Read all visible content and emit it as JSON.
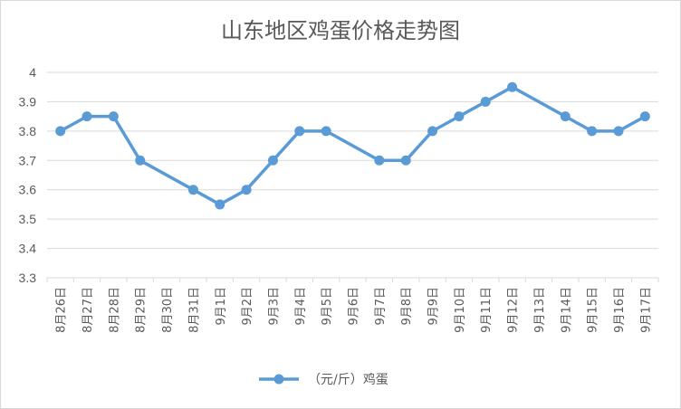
{
  "chart_data": {
    "type": "line",
    "title": "山东地区鸡蛋价格走势图",
    "categories": [
      "8月26日",
      "8月27日",
      "8月28日",
      "8月29日",
      "8月30日",
      "8月31日",
      "9月1日",
      "9月2日",
      "9月3日",
      "9月4日",
      "9月5日",
      "9月6日",
      "9月7日",
      "9月8日",
      "9月9日",
      "9月10日",
      "9月11日",
      "9月12日",
      "9月13日",
      "9月14日",
      "9月15日",
      "9月16日",
      "9月17日"
    ],
    "series": [
      {
        "name": "（元/斤）鸡蛋",
        "values": [
          3.8,
          3.85,
          3.85,
          3.7,
          null,
          3.6,
          3.55,
          3.6,
          3.7,
          3.8,
          3.8,
          null,
          3.7,
          3.7,
          3.8,
          3.85,
          3.9,
          3.95,
          null,
          3.85,
          3.8,
          3.8,
          3.85
        ]
      }
    ],
    "yticks": [
      "3.3",
      "3.4",
      "3.5",
      "3.6",
      "3.7",
      "3.8",
      "3.9",
      "4"
    ],
    "ylim": [
      3.3,
      4.0
    ],
    "grid": true,
    "legend_position": "bottom",
    "series_color": "#5b9bd5"
  }
}
